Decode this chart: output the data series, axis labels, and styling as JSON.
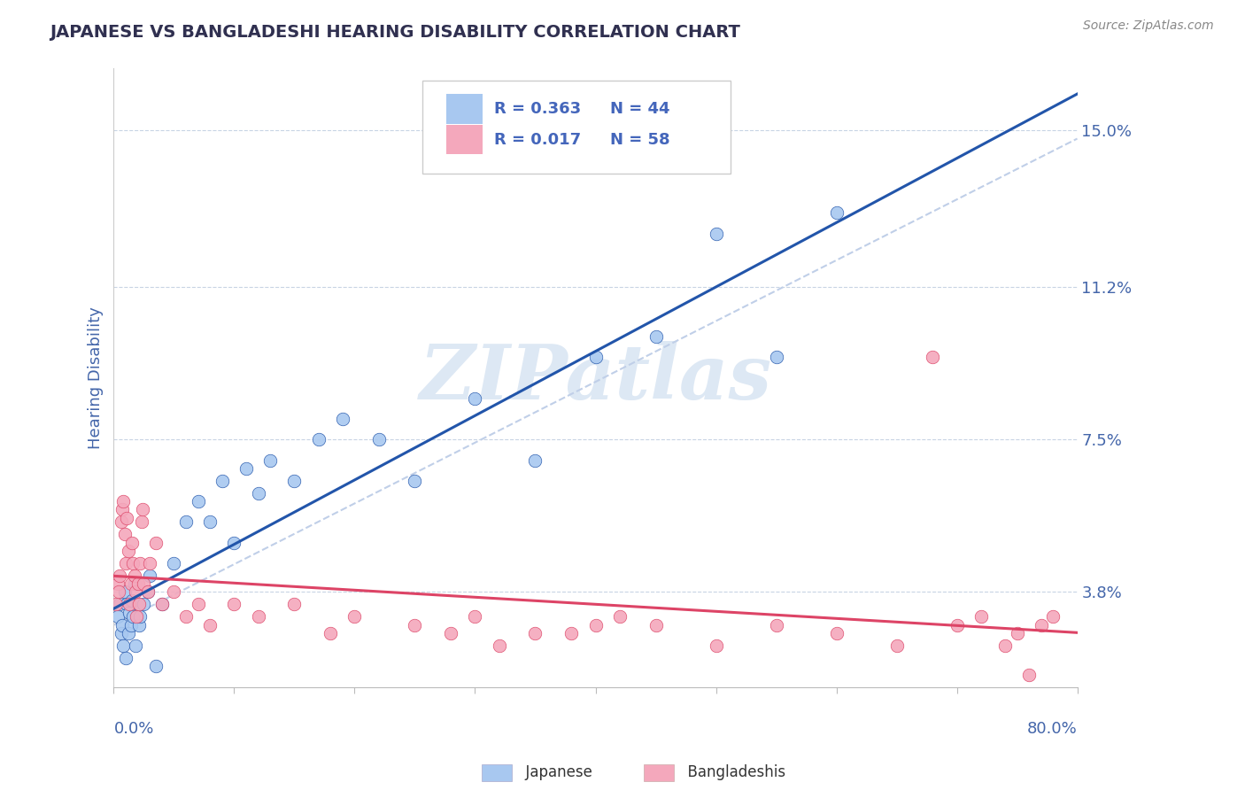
{
  "title": "JAPANESE VS BANGLADESHI HEARING DISABILITY CORRELATION CHART",
  "source": "Source: ZipAtlas.com",
  "ylabel": "Hearing Disability",
  "xlim": [
    0.0,
    80.0
  ],
  "ylim": [
    1.5,
    16.5
  ],
  "yticks": [
    3.8,
    7.5,
    11.2,
    15.0
  ],
  "ytick_labels": [
    "3.8%",
    "7.5%",
    "11.2%",
    "15.0%"
  ],
  "xticks": [
    0.0,
    10.0,
    20.0,
    30.0,
    40.0,
    50.0,
    60.0,
    70.0,
    80.0
  ],
  "japanese_R": 0.363,
  "japanese_N": 44,
  "bangladeshi_R": 0.017,
  "bangladeshi_N": 58,
  "japanese_color": "#a8c8f0",
  "bangladeshi_color": "#f4a8bc",
  "japanese_trend_color": "#2255aa",
  "bangladeshi_trend_color": "#dd4466",
  "reference_line_color": "#c0cfe8",
  "grid_color": "#c8d4e4",
  "background_color": "#ffffff",
  "title_color": "#303050",
  "axis_label_color": "#4466aa",
  "legend_R_color": "#4466bb",
  "watermark_color": "#dde8f4",
  "japanese_x": [
    0.3,
    0.5,
    0.6,
    0.7,
    0.8,
    0.9,
    1.0,
    1.1,
    1.2,
    1.3,
    1.4,
    1.5,
    1.6,
    1.7,
    1.8,
    2.0,
    2.1,
    2.2,
    2.5,
    2.8,
    3.0,
    3.5,
    4.0,
    5.0,
    6.0,
    7.0,
    8.0,
    9.0,
    10.0,
    11.0,
    12.0,
    13.0,
    15.0,
    17.0,
    19.0,
    22.0,
    25.0,
    30.0,
    35.0,
    40.0,
    45.0,
    50.0,
    55.0,
    60.0
  ],
  "japanese_y": [
    3.2,
    3.5,
    2.8,
    3.0,
    2.5,
    3.8,
    2.2,
    3.5,
    2.8,
    3.3,
    3.0,
    3.6,
    3.2,
    4.0,
    2.5,
    3.5,
    3.0,
    3.2,
    3.5,
    3.8,
    4.2,
    2.0,
    3.5,
    4.5,
    5.5,
    6.0,
    5.5,
    6.5,
    5.0,
    6.8,
    6.2,
    7.0,
    6.5,
    7.5,
    8.0,
    7.5,
    6.5,
    8.5,
    7.0,
    9.5,
    10.0,
    12.5,
    9.5,
    13.0
  ],
  "bangladeshi_x": [
    0.2,
    0.3,
    0.4,
    0.5,
    0.6,
    0.7,
    0.8,
    0.9,
    1.0,
    1.1,
    1.2,
    1.3,
    1.4,
    1.5,
    1.6,
    1.7,
    1.8,
    1.9,
    2.0,
    2.1,
    2.2,
    2.3,
    2.4,
    2.5,
    2.8,
    3.0,
    3.5,
    4.0,
    5.0,
    6.0,
    7.0,
    8.0,
    10.0,
    12.0,
    15.0,
    18.0,
    20.0,
    25.0,
    28.0,
    30.0,
    32.0,
    35.0,
    38.0,
    40.0,
    42.0,
    45.0,
    50.0,
    55.0,
    60.0,
    65.0,
    68.0,
    70.0,
    72.0,
    74.0,
    75.0,
    76.0,
    77.0,
    78.0
  ],
  "bangladeshi_y": [
    3.5,
    4.0,
    3.8,
    4.2,
    5.5,
    5.8,
    6.0,
    5.2,
    4.5,
    5.6,
    4.8,
    3.5,
    4.0,
    5.0,
    4.5,
    4.2,
    3.8,
    3.2,
    4.0,
    3.5,
    4.5,
    5.5,
    5.8,
    4.0,
    3.8,
    4.5,
    5.0,
    3.5,
    3.8,
    3.2,
    3.5,
    3.0,
    3.5,
    3.2,
    3.5,
    2.8,
    3.2,
    3.0,
    2.8,
    3.2,
    2.5,
    2.8,
    2.8,
    3.0,
    3.2,
    3.0,
    2.5,
    3.0,
    2.8,
    2.5,
    9.5,
    3.0,
    3.2,
    2.5,
    2.8,
    1.8,
    3.0,
    3.2
  ],
  "ref_line_x": [
    0.0,
    80.0
  ],
  "ref_line_y": [
    3.0,
    14.8
  ]
}
